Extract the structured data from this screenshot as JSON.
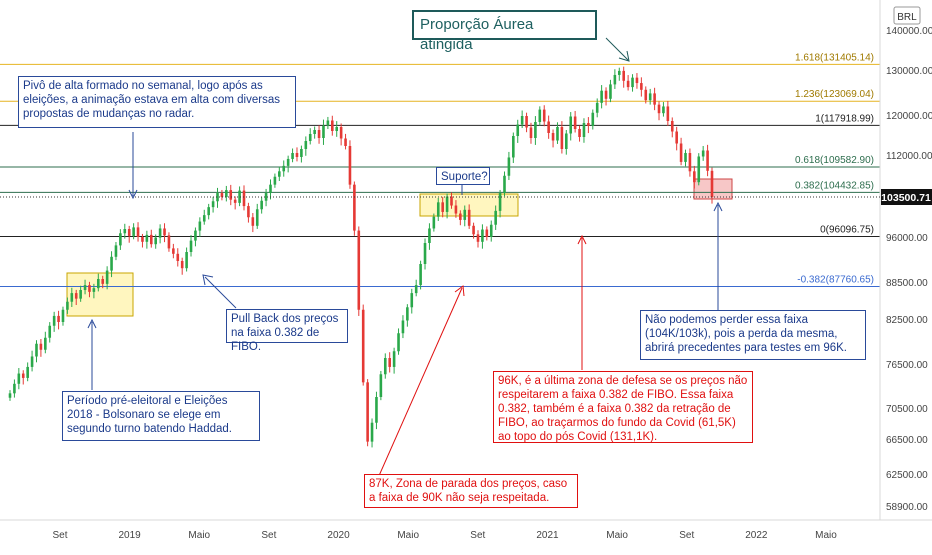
{
  "chart_data": {
    "type": "candlestick",
    "symbol_currency": "BRL",
    "price_axis": {
      "ticks": [
        "140000.00",
        "130000.00",
        "120000.00",
        "112000.00",
        "103500.71",
        "96000.00",
        "88500.00",
        "82500.00",
        "76500.00",
        "70500.00",
        "66500.00",
        "62500.00",
        "58900.00"
      ],
      "ylim": [
        56500,
        146000
      ],
      "last_price": 103500.71,
      "last_price_label": "103500.71"
    },
    "time_axis": {
      "ticks": [
        "Set",
        "2019",
        "Maio",
        "Set",
        "2020",
        "Maio",
        "Set",
        "2021",
        "Maio",
        "Set",
        "2022",
        "Maio"
      ]
    },
    "fib_levels": [
      {
        "label": "1.618(131405.14)",
        "value": 131405.14,
        "color": "#e6b422"
      },
      {
        "label": "1.236(123069.04)",
        "value": 123069.04,
        "color": "#e6b422"
      },
      {
        "label": "1(117918.99)",
        "value": 117918.99,
        "color": "#222222"
      },
      {
        "label": "0.618(109582.90)",
        "value": 109582.9,
        "color": "#2e6e4e"
      },
      {
        "label": "0.382(104432.85)",
        "value": 104432.85,
        "color": "#2e6e4e"
      },
      {
        "label": "0(96096.75)",
        "value": 96096.75,
        "color": "#222222"
      },
      {
        "label": "-0.382(87760.65)",
        "value": 87760.65,
        "color": "#3a6ad0"
      }
    ],
    "candles_close": [
      72500,
      73800,
      75200,
      74600,
      76100,
      77500,
      79200,
      78400,
      80000,
      81600,
      83000,
      82100,
      84000,
      85300,
      86700,
      85800,
      87200,
      88000,
      86900,
      87500,
      89000,
      88200,
      90400,
      92700,
      94600,
      96700,
      97500,
      96200,
      97800,
      96000,
      95200,
      96400,
      94800,
      95900,
      97600,
      96300,
      94100,
      93200,
      92000,
      90800,
      93500,
      95400,
      97200,
      98900,
      100100,
      101600,
      102700,
      104300,
      103500,
      104900,
      103000,
      102400,
      104800,
      101800,
      99700,
      98100,
      101200,
      102800,
      104300,
      106000,
      107600,
      108700,
      109800,
      111200,
      112400,
      111600,
      113200,
      114800,
      116200,
      117000,
      115400,
      117900,
      118900,
      116800,
      117600,
      115300,
      113800,
      106000,
      97200,
      84000,
      74000,
      66200,
      68600,
      72000,
      75100,
      77300,
      76100,
      78200,
      80600,
      82300,
      84400,
      86700,
      88000,
      91500,
      95000,
      97600,
      99800,
      102500,
      100700,
      103600,
      101900,
      100400,
      99200,
      101100,
      98100,
      96500,
      95200,
      97400,
      96000,
      98300,
      100900,
      104300,
      107800,
      111500,
      115800,
      118100,
      119800,
      117500,
      115400,
      118600,
      121200,
      118700,
      116400,
      114900,
      117600,
      113200,
      116300,
      119700,
      117200,
      115600,
      118400,
      117800,
      120500,
      122700,
      125400,
      123600,
      126800,
      128900,
      129800,
      127600,
      126200,
      128300,
      127100,
      125600,
      123300,
      124800,
      122300,
      120400,
      121900,
      118800,
      116700,
      114300,
      110600,
      112400,
      108700,
      106500,
      111700,
      112900,
      108800,
      103500
    ]
  },
  "annotations": {
    "golden_ratio_title": "Proporção Áurea atingida",
    "pivot_text": "Pivô de alta formado no semanal, logo após as eleições, a animação estava em alta com diversas propostas de mudanças no radar.",
    "pullback_text": "Pull Back dos preços na faixa 0.382 de FIBO.",
    "election_text": "Período pré-eleitoral e Eleições 2018 - Bolsonaro se elege em segundo turno batendo Haddad.",
    "support_text": "Suporte?",
    "low_87k_text": "87K, Zona de parada dos preços, caso a faixa de 90K não seja respeitada.",
    "zone_96k_text": "96K, é a última zona de defesa se os preços não respeitarem a faixa 0.382 de FIBO. Essa faixa 0.382, também é a faixa 0.382 da retração de FIBO, ao traçarmos do fundo da Covid (61,5K) ao topo do pós Covid (131,1K).",
    "cannot_lose_text": "Não podemos perder essa faixa (104K/103k), pois a perda da mesma, abrirá precedentes para testes em 96K."
  },
  "colors": {
    "up": "#2aa84a",
    "down": "#e53935",
    "zone_yellow": "#fff6bf",
    "zone_red": "#f7c7c7",
    "annotation_blue": "#2a4a9a",
    "annotation_red": "#e01010"
  }
}
